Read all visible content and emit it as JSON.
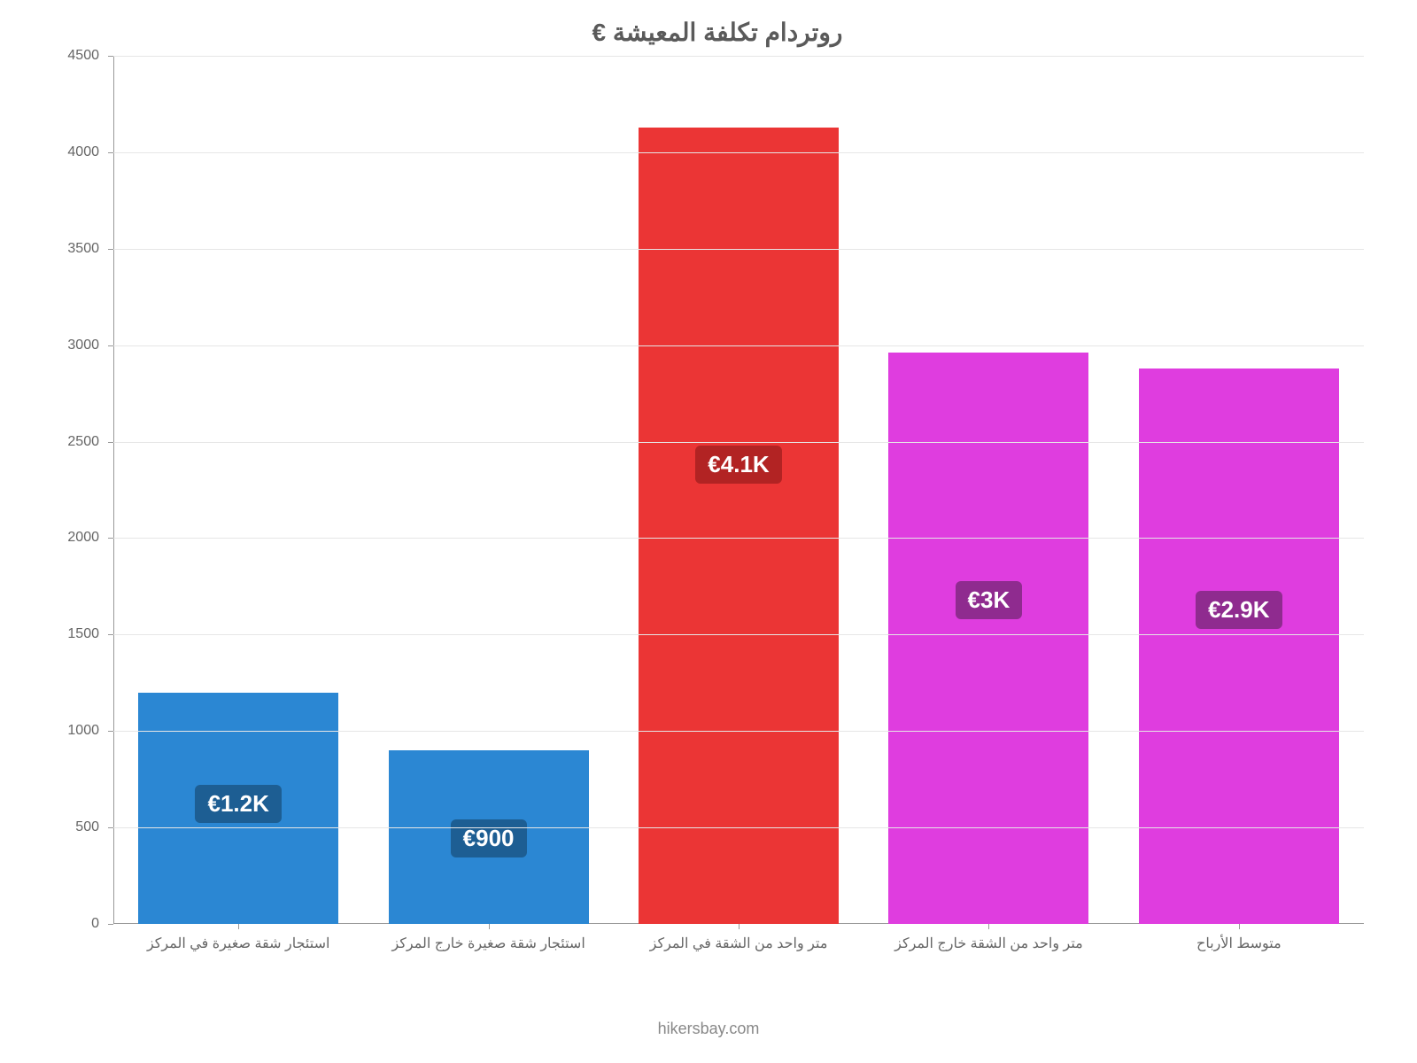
{
  "chart": {
    "type": "bar",
    "title": "روتردام تكلفة المعيشة €",
    "title_fontsize": 28,
    "title_color": "#5a5a5a",
    "background_color": "#ffffff",
    "grid_color": "#e6e6e6",
    "axis_color": "#999999",
    "ylim": [
      0,
      4500
    ],
    "ytick_step": 500,
    "yticks": [
      0,
      500,
      1000,
      1500,
      2000,
      2500,
      3000,
      3500,
      4000,
      4500
    ],
    "x_label_fontsize": 16,
    "y_label_fontsize": 16,
    "label_color": "#666666",
    "bar_width_pct": 80,
    "bars": [
      {
        "category": "استئجار شقة صغيرة في المركز",
        "value": 1200,
        "display_label": "€1.2K",
        "bar_color": "#2b87d3",
        "label_bg": "#1d5e93"
      },
      {
        "category": "استئجار شقة صغيرة خارج المركز",
        "value": 900,
        "display_label": "€900",
        "bar_color": "#2b87d3",
        "label_bg": "#1d5e93"
      },
      {
        "category": "متر واحد من الشقة في المركز",
        "value": 4130,
        "display_label": "€4.1K",
        "bar_color": "#eb3535",
        "label_bg": "#b22323"
      },
      {
        "category": "متر واحد من الشقة خارج المركز",
        "value": 2960,
        "display_label": "€3K",
        "bar_color": "#df3ddf",
        "label_bg": "#8f2b8f"
      },
      {
        "category": "متوسط الأرباح",
        "value": 2880,
        "display_label": "€2.9K",
        "bar_color": "#df3ddf",
        "label_bg": "#8f2b8f"
      }
    ],
    "bar_label_fontsize": 26,
    "bar_label_color": "#ffffff"
  },
  "attribution": "hikersbay.com"
}
